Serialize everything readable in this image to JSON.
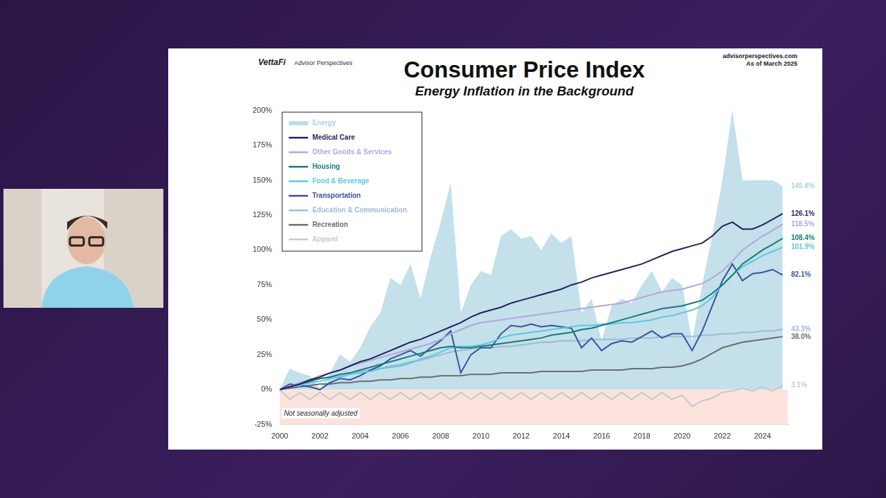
{
  "header": {
    "logo": "VettaFi",
    "logo_sub": "Advisor Perspectives",
    "source": "advisorperspectives.com",
    "date_note": "As of March 2025"
  },
  "chart_data": {
    "type": "line",
    "title": "Consumer Price Index",
    "subtitle": "Energy Inflation in the Background",
    "note": "Not seasonally adjusted",
    "x": [
      2000,
      2000.5,
      2001,
      2001.5,
      2002,
      2002.5,
      2003,
      2003.5,
      2004,
      2004.5,
      2005,
      2005.5,
      2006,
      2006.5,
      2007,
      2007.5,
      2008,
      2008.5,
      2009,
      2009.5,
      2010,
      2010.5,
      2011,
      2011.5,
      2012,
      2012.5,
      2013,
      2013.5,
      2014,
      2014.5,
      2015,
      2015.5,
      2016,
      2016.5,
      2017,
      2017.5,
      2018,
      2018.5,
      2019,
      2019.5,
      2020,
      2020.5,
      2021,
      2021.5,
      2022,
      2022.5,
      2023,
      2023.5,
      2024,
      2024.5,
      2025
    ],
    "xlim": [
      2000,
      2025.25
    ],
    "xticks": [
      2000,
      2002,
      2004,
      2006,
      2008,
      2010,
      2012,
      2014,
      2016,
      2018,
      2020,
      2022,
      2024
    ],
    "ylim": [
      -25,
      200
    ],
    "yticks": [
      {
        "value": -25,
        "label": "-25%"
      },
      {
        "value": 0,
        "label": "0%"
      },
      {
        "value": 25,
        "label": "25%"
      },
      {
        "value": 50,
        "label": "50%"
      },
      {
        "value": 75,
        "label": "75%"
      },
      {
        "value": 100,
        "label": "100%"
      },
      {
        "value": 125,
        "label": "125%"
      },
      {
        "value": 150,
        "label": "150%"
      },
      {
        "value": 175,
        "label": "175%"
      },
      {
        "value": 200,
        "label": "200%"
      }
    ],
    "grid": false,
    "legend": "top-left",
    "shaded_band": {
      "from": -25,
      "to": 0,
      "color": "#fde3de"
    },
    "series": [
      {
        "name": "Energy",
        "type": "area",
        "color": "#a9d3e2",
        "end_label": "145.8%",
        "values": [
          0,
          15,
          12,
          10,
          0,
          12,
          25,
          20,
          30,
          45,
          55,
          80,
          75,
          90,
          65,
          95,
          120,
          148,
          55,
          75,
          85,
          82,
          110,
          115,
          108,
          110,
          100,
          112,
          105,
          110,
          55,
          65,
          35,
          60,
          65,
          62,
          75,
          85,
          70,
          80,
          75,
          35,
          75,
          110,
          150,
          200,
          150,
          150,
          150,
          150,
          145.8
        ]
      },
      {
        "name": "Medical Care",
        "color": "#1f1f5e",
        "end_label": "126.1%",
        "values": [
          0,
          2,
          4,
          7,
          9,
          12,
          14,
          17,
          20,
          22,
          25,
          28,
          31,
          34,
          36,
          39,
          42,
          45,
          48,
          52,
          55,
          57,
          59,
          62,
          64,
          66,
          68,
          70,
          72,
          75,
          77,
          80,
          82,
          84,
          86,
          88,
          90,
          93,
          96,
          99,
          101,
          103,
          105,
          110,
          117,
          120,
          115,
          115,
          118,
          122,
          126.1
        ]
      },
      {
        "name": "Other Goods & Services",
        "color": "#b3a6d9",
        "end_label": "118.5%",
        "values": [
          0,
          2,
          5,
          7,
          10,
          12,
          14,
          17,
          19,
          21,
          23,
          25,
          27,
          29,
          31,
          33,
          36,
          40,
          43,
          46,
          48,
          49,
          50,
          51,
          52,
          53,
          54,
          55,
          56,
          57,
          58,
          59,
          60,
          61,
          62,
          64,
          66,
          68,
          70,
          71,
          72,
          74,
          76,
          80,
          85,
          92,
          100,
          105,
          110,
          114,
          118.5
        ]
      },
      {
        "name": "Housing",
        "color": "#137a7a",
        "end_label": "108.4%",
        "values": [
          0,
          2,
          4,
          6,
          8,
          9,
          11,
          12,
          14,
          16,
          18,
          20,
          22,
          24,
          26,
          28,
          30,
          31,
          30,
          30,
          31,
          32,
          33,
          34,
          35,
          36,
          37,
          39,
          40,
          41,
          43,
          44,
          46,
          48,
          50,
          52,
          54,
          56,
          58,
          59,
          60,
          62,
          64,
          69,
          75,
          82,
          90,
          95,
          100,
          104,
          108.4
        ]
      },
      {
        "name": "Food & Beverage",
        "color": "#5bc8e0",
        "end_label": "101.9%",
        "values": [
          0,
          2,
          3,
          5,
          6,
          8,
          9,
          11,
          12,
          13,
          15,
          16,
          17,
          19,
          22,
          24,
          27,
          30,
          31,
          31,
          32,
          34,
          37,
          39,
          40,
          41,
          42,
          43,
          44,
          45,
          46,
          46,
          47,
          47,
          48,
          48,
          49,
          50,
          52,
          53,
          55,
          57,
          60,
          66,
          75,
          82,
          88,
          92,
          96,
          99,
          101.9
        ]
      },
      {
        "name": "Transportation",
        "color": "#3b4fa0",
        "end_label": "82.1%",
        "values": [
          0,
          4,
          3,
          2,
          0,
          5,
          8,
          7,
          10,
          14,
          17,
          22,
          25,
          28,
          24,
          30,
          35,
          42,
          12,
          25,
          30,
          30,
          40,
          46,
          45,
          47,
          45,
          46,
          45,
          44,
          30,
          37,
          28,
          33,
          35,
          34,
          38,
          42,
          37,
          40,
          40,
          28,
          42,
          60,
          78,
          90,
          78,
          83,
          84,
          86,
          82.1
        ]
      },
      {
        "name": "Education & Communication",
        "color": "#9fb8d6",
        "end_label": "43.3%",
        "values": [
          0,
          2,
          4,
          6,
          8,
          9,
          10,
          12,
          13,
          14,
          15,
          17,
          18,
          20,
          21,
          23,
          25,
          27,
          28,
          29,
          30,
          30,
          31,
          31,
          32,
          33,
          34,
          34,
          35,
          35,
          35,
          36,
          36,
          36,
          36,
          37,
          37,
          37,
          38,
          38,
          38,
          38,
          39,
          39,
          40,
          40,
          41,
          41,
          42,
          42,
          43.3
        ]
      },
      {
        "name": "Recreation",
        "color": "#6b6b6b",
        "end_label": "38.0%",
        "values": [
          0,
          1,
          2,
          3,
          4,
          4,
          5,
          5,
          6,
          6,
          7,
          7,
          8,
          8,
          9,
          9,
          10,
          10,
          10,
          11,
          11,
          11,
          12,
          12,
          12,
          12,
          13,
          13,
          13,
          13,
          13,
          14,
          14,
          14,
          14,
          15,
          15,
          15,
          16,
          16,
          17,
          19,
          22,
          26,
          30,
          32,
          34,
          35,
          36,
          37,
          38.0
        ]
      },
      {
        "name": "Apparel",
        "color": "#c8c8c8",
        "end_label": "3.1%",
        "values": [
          0,
          -7,
          -2,
          -7,
          -2,
          -7,
          -2,
          -7,
          -2,
          -7,
          -2,
          -7,
          -2,
          -7,
          -2,
          -7,
          -2,
          -7,
          -2,
          -7,
          -2,
          -7,
          -2,
          -7,
          -2,
          -7,
          -2,
          -7,
          -2,
          -7,
          -2,
          -7,
          -2,
          -7,
          -2,
          -7,
          -2,
          -7,
          -2,
          -7,
          -4,
          -12,
          -8,
          -6,
          -2,
          -1,
          1,
          -1,
          2,
          -1,
          3.1
        ]
      }
    ]
  }
}
